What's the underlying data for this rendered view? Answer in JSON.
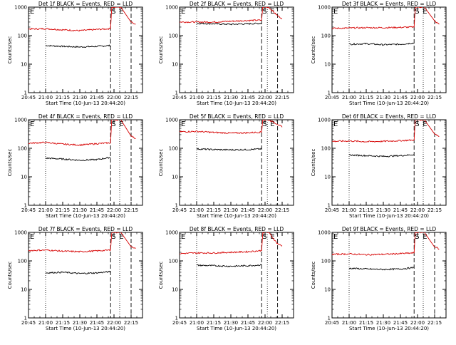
{
  "figure": {
    "background": "#ffffff",
    "colors": {
      "events": "#000000",
      "lld": "#d60000",
      "axes": "#000000"
    }
  },
  "chart_data": [
    {
      "type": "line",
      "panel": "Det 1f",
      "title": "Det 1f BLACK = Events, RED = LLD",
      "xlabel": "Start Time (10-Jun-13 20:44:20)",
      "ylabel": "Counts/sec",
      "x_ticks": [
        "20:45",
        "21:00",
        "21:15",
        "21:30",
        "21:45",
        "22:00",
        "22:15"
      ],
      "y_ticks": [
        "1",
        "10",
        "100",
        "1000"
      ],
      "ylim": [
        1,
        1000
      ],
      "yscale": "log",
      "xlim": [
        "20:45",
        "22:25"
      ],
      "markers": [
        "S",
        "E"
      ],
      "vlines_dotted": [
        "21:00",
        "22:05"
      ],
      "vlines_dashed": [
        "21:57",
        "22:15"
      ],
      "series": [
        {
          "name": "BLACK = Events",
          "x": [
            "21:00",
            "21:15",
            "21:30",
            "21:45",
            "21:57"
          ],
          "values": [
            45,
            42,
            40,
            42,
            45
          ]
        },
        {
          "name": "RED = LLD",
          "x": [
            "20:45",
            "21:00",
            "21:15",
            "21:30",
            "21:45",
            "21:57",
            "21:58",
            "22:03",
            "22:06",
            "22:15",
            "22:19"
          ],
          "values": [
            170,
            175,
            160,
            150,
            165,
            175,
            1000,
            1000,
            1000,
            300,
            250
          ]
        }
      ]
    },
    {
      "type": "line",
      "panel": "Det 2f",
      "title": "Det 2f BLACK = Events, RED = LLD",
      "xlabel": "Start Time (10-Jun-13 20:44:20)",
      "ylabel": "Counts/sec",
      "x_ticks": [
        "20:45",
        "21:00",
        "21:15",
        "21:30",
        "21:45",
        "22:00",
        "22:15"
      ],
      "y_ticks": [
        "1",
        "10",
        "100",
        "1000"
      ],
      "ylim": [
        1,
        1000
      ],
      "yscale": "log",
      "xlim": [
        "20:45",
        "22:25"
      ],
      "markers": [
        "S",
        "E"
      ],
      "vlines_dotted": [
        "21:00",
        "22:02"
      ],
      "vlines_dashed": [
        "21:57",
        "22:11"
      ],
      "series": [
        {
          "name": "BLACK = Events",
          "x": [
            "21:00",
            "21:15",
            "21:30",
            "21:45",
            "21:57"
          ],
          "values": [
            270,
            260,
            250,
            260,
            270
          ]
        },
        {
          "name": "RED = LLD",
          "x": [
            "20:45",
            "21:00",
            "21:15",
            "21:30",
            "21:45",
            "21:57",
            "21:58",
            "22:00",
            "22:03",
            "22:11",
            "22:15"
          ],
          "values": [
            300,
            300,
            300,
            320,
            340,
            350,
            1000,
            1000,
            1000,
            500,
            400
          ]
        }
      ]
    },
    {
      "type": "line",
      "panel": "Det 3f",
      "title": "Det 3f BLACK = Events, RED = LLD",
      "xlabel": "Start Time (10-Jun-13 20:44:20)",
      "ylabel": "Counts/sec",
      "x_ticks": [
        "20:45",
        "21:00",
        "21:15",
        "21:30",
        "21:45",
        "22:00",
        "22:15"
      ],
      "y_ticks": [
        "1",
        "10",
        "100",
        "1000"
      ],
      "ylim": [
        1,
        1000
      ],
      "yscale": "log",
      "xlim": [
        "20:45",
        "22:25"
      ],
      "markers": [
        "S",
        "E"
      ],
      "vlines_dotted": [
        "21:00",
        "22:05"
      ],
      "vlines_dashed": [
        "21:57",
        "22:15"
      ],
      "series": [
        {
          "name": "BLACK = Events",
          "x": [
            "21:00",
            "21:15",
            "21:30",
            "21:45",
            "21:57"
          ],
          "values": [
            50,
            52,
            48,
            50,
            55
          ]
        },
        {
          "name": "RED = LLD",
          "x": [
            "20:45",
            "21:00",
            "21:15",
            "21:30",
            "21:45",
            "21:57",
            "21:58",
            "22:03",
            "22:06",
            "22:15",
            "22:19"
          ],
          "values": [
            180,
            185,
            190,
            190,
            195,
            200,
            1000,
            1000,
            1000,
            320,
            250
          ]
        }
      ]
    },
    {
      "type": "line",
      "panel": "Det 4f",
      "title": "Det 4f BLACK = Events, RED = LLD",
      "xlabel": "Start Time (10-Jun-13 20:44:20)",
      "ylabel": "Counts/sec",
      "x_ticks": [
        "20:45",
        "21:00",
        "21:15",
        "21:30",
        "21:45",
        "22:00",
        "22:15"
      ],
      "y_ticks": [
        "1",
        "10",
        "100",
        "1000"
      ],
      "ylim": [
        1,
        1000
      ],
      "yscale": "log",
      "xlim": [
        "20:45",
        "22:25"
      ],
      "markers": [
        "S",
        "E"
      ],
      "vlines_dotted": [
        "21:00",
        "22:05"
      ],
      "vlines_dashed": [
        "21:57",
        "22:15"
      ],
      "series": [
        {
          "name": "BLACK = Events",
          "x": [
            "21:00",
            "21:15",
            "21:30",
            "21:45",
            "21:57"
          ],
          "values": [
            45,
            42,
            38,
            40,
            48
          ]
        },
        {
          "name": "RED = LLD",
          "x": [
            "20:45",
            "21:00",
            "21:15",
            "21:30",
            "21:45",
            "21:57",
            "21:58",
            "22:03",
            "22:06",
            "22:15",
            "22:19"
          ],
          "values": [
            150,
            160,
            140,
            130,
            145,
            155,
            1000,
            1000,
            1000,
            280,
            220
          ]
        }
      ]
    },
    {
      "type": "line",
      "panel": "Det 5f",
      "title": "Det 5f BLACK = Events, RED = LLD",
      "xlabel": "Start Time (10-Jun-13 20:44:20)",
      "ylabel": "Counts/sec",
      "x_ticks": [
        "20:45",
        "21:00",
        "21:15",
        "21:30",
        "21:45",
        "22:00",
        "22:15"
      ],
      "y_ticks": [
        "1",
        "10",
        "100",
        "1000"
      ],
      "ylim": [
        1,
        1000
      ],
      "yscale": "log",
      "xlim": [
        "20:45",
        "22:25"
      ],
      "markers": [
        "S",
        "E"
      ],
      "vlines_dotted": [
        "21:00",
        "22:02"
      ],
      "vlines_dashed": [
        "21:57",
        "22:11"
      ],
      "series": [
        {
          "name": "BLACK = Events",
          "x": [
            "21:00",
            "21:15",
            "21:30",
            "21:45",
            "21:57"
          ],
          "values": [
            95,
            90,
            88,
            90,
            95
          ]
        },
        {
          "name": "RED = LLD",
          "x": [
            "20:45",
            "21:00",
            "21:15",
            "21:30",
            "21:45",
            "21:57",
            "21:58",
            "22:00",
            "22:03",
            "22:11",
            "22:15"
          ],
          "values": [
            380,
            390,
            360,
            340,
            350,
            370,
            1000,
            1000,
            1000,
            700,
            550
          ]
        }
      ]
    },
    {
      "type": "line",
      "panel": "Det 6f",
      "title": "Det 6f BLACK = Events, RED = LLD",
      "xlabel": "Start Time (10-Jun-13 20:44:20)",
      "ylabel": "Counts/sec",
      "x_ticks": [
        "20:45",
        "21:00",
        "21:15",
        "21:30",
        "21:45",
        "22:00",
        "22:15"
      ],
      "y_ticks": [
        "1",
        "10",
        "100",
        "1000"
      ],
      "ylim": [
        1,
        1000
      ],
      "yscale": "log",
      "xlim": [
        "20:45",
        "22:25"
      ],
      "markers": [
        "S",
        "E"
      ],
      "vlines_dotted": [
        "21:00",
        "22:05"
      ],
      "vlines_dashed": [
        "21:57",
        "22:15"
      ],
      "series": [
        {
          "name": "BLACK = Events",
          "x": [
            "21:00",
            "21:15",
            "21:30",
            "21:45",
            "21:57"
          ],
          "values": [
            58,
            55,
            52,
            55,
            60
          ]
        },
        {
          "name": "RED = LLD",
          "x": [
            "20:45",
            "21:00",
            "21:15",
            "21:30",
            "21:45",
            "21:57",
            "21:58",
            "22:03",
            "22:06",
            "22:15",
            "22:19"
          ],
          "values": [
            175,
            180,
            170,
            175,
            185,
            195,
            1000,
            1000,
            1000,
            330,
            260
          ]
        }
      ]
    },
    {
      "type": "line",
      "panel": "Det 7f",
      "title": "Det 7f BLACK = Events, RED = LLD",
      "xlabel": "Start Time (10-Jun-13 20:44:20)",
      "ylabel": "Counts/sec",
      "x_ticks": [
        "20:45",
        "21:00",
        "21:15",
        "21:30",
        "21:45",
        "22:00",
        "22:15"
      ],
      "y_ticks": [
        "1",
        "10",
        "100",
        "1000"
      ],
      "ylim": [
        1,
        1000
      ],
      "yscale": "log",
      "xlim": [
        "20:45",
        "22:25"
      ],
      "markers": [
        "S",
        "E"
      ],
      "vlines_dotted": [
        "21:00",
        "22:05"
      ],
      "vlines_dashed": [
        "21:57",
        "22:15"
      ],
      "series": [
        {
          "name": "BLACK = Events",
          "x": [
            "21:00",
            "21:15",
            "21:30",
            "21:45",
            "21:57"
          ],
          "values": [
            38,
            40,
            36,
            38,
            42
          ]
        },
        {
          "name": "RED = LLD",
          "x": [
            "20:45",
            "21:00",
            "21:15",
            "21:30",
            "21:45",
            "21:57",
            "21:58",
            "22:03",
            "22:06",
            "22:15",
            "22:19"
          ],
          "values": [
            230,
            240,
            220,
            210,
            225,
            240,
            1000,
            1000,
            1000,
            330,
            270
          ]
        }
      ]
    },
    {
      "type": "line",
      "panel": "Det 8f",
      "title": "Det 8f BLACK = Events, RED = LLD",
      "xlabel": "Start Time (10-Jun-13 20:44:20)",
      "ylabel": "Counts/sec",
      "x_ticks": [
        "20:45",
        "21:00",
        "21:15",
        "21:30",
        "21:45",
        "22:00",
        "22:15"
      ],
      "y_ticks": [
        "1",
        "10",
        "100",
        "1000"
      ],
      "ylim": [
        1,
        1000
      ],
      "yscale": "log",
      "xlim": [
        "20:45",
        "22:25"
      ],
      "markers": [
        "S",
        "E"
      ],
      "vlines_dotted": [
        "21:00",
        "22:02"
      ],
      "vlines_dashed": [
        "21:57",
        "22:11"
      ],
      "series": [
        {
          "name": "BLACK = Events",
          "x": [
            "21:00",
            "21:15",
            "21:30",
            "21:45",
            "21:57"
          ],
          "values": [
            70,
            68,
            65,
            68,
            72
          ]
        },
        {
          "name": "RED = LLD",
          "x": [
            "20:45",
            "21:00",
            "21:15",
            "21:30",
            "21:45",
            "21:57",
            "21:58",
            "22:00",
            "22:03",
            "22:11",
            "22:15"
          ],
          "values": [
            180,
            190,
            190,
            200,
            210,
            230,
            1000,
            1000,
            1000,
            400,
            330
          ]
        }
      ]
    },
    {
      "type": "line",
      "panel": "Det 9f",
      "title": "Det 9f BLACK = Events, RED = LLD",
      "xlabel": "Start Time (10-Jun-13 20:44:20)",
      "ylabel": "Counts/sec",
      "x_ticks": [
        "20:45",
        "21:00",
        "21:15",
        "21:30",
        "21:45",
        "22:00",
        "22:15"
      ],
      "y_ticks": [
        "1",
        "10",
        "100",
        "1000"
      ],
      "ylim": [
        1,
        1000
      ],
      "yscale": "log",
      "xlim": [
        "20:45",
        "22:25"
      ],
      "markers": [
        "S",
        "E"
      ],
      "vlines_dotted": [
        "21:00",
        "22:05"
      ],
      "vlines_dashed": [
        "21:57",
        "22:15"
      ],
      "series": [
        {
          "name": "BLACK = Events",
          "x": [
            "21:00",
            "21:15",
            "21:30",
            "21:45",
            "21:57"
          ],
          "values": [
            55,
            52,
            50,
            52,
            58
          ]
        },
        {
          "name": "RED = LLD",
          "x": [
            "20:45",
            "21:00",
            "21:15",
            "21:30",
            "21:45",
            "21:57",
            "21:58",
            "22:03",
            "22:06",
            "22:15",
            "22:19"
          ],
          "values": [
            170,
            175,
            165,
            170,
            180,
            190,
            1000,
            1000,
            1000,
            320,
            260
          ]
        }
      ]
    }
  ]
}
